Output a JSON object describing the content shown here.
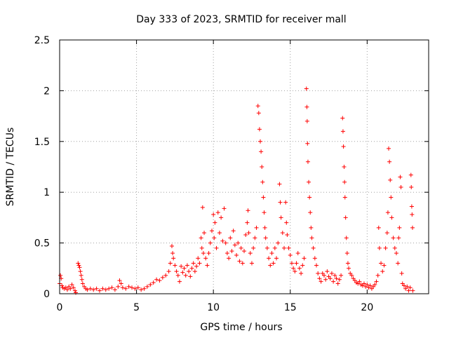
{
  "chart_data": {
    "type": "scatter",
    "title": "Day 333 of 2023, SRMTID for receiver mall",
    "xlabel": "GPS time / hours",
    "ylabel": "SRMTID / TECUs",
    "xlim": [
      0,
      24.0
    ],
    "ylim": [
      0,
      2.5
    ],
    "xticks": [
      0,
      5,
      10,
      15,
      20
    ],
    "xtick_labels": [
      "0",
      "5",
      "10",
      "15",
      "20"
    ],
    "yticks": [
      0,
      0.5,
      1,
      1.5,
      2,
      2.5
    ],
    "ytick_labels": [
      "0",
      "0.5",
      "1",
      "1.5",
      "2",
      "2.5"
    ],
    "grid": true,
    "marker": "+",
    "color": "#ff0000",
    "series": [
      {
        "name": "SRMTID",
        "points": [
          [
            0.0,
            0.1
          ],
          [
            0.05,
            0.18
          ],
          [
            0.1,
            0.15
          ],
          [
            0.15,
            0.08
          ],
          [
            0.2,
            0.06
          ],
          [
            0.3,
            0.05
          ],
          [
            0.4,
            0.06
          ],
          [
            0.5,
            0.04
          ],
          [
            0.6,
            0.07
          ],
          [
            0.7,
            0.05
          ],
          [
            0.8,
            0.09
          ],
          [
            0.9,
            0.06
          ],
          [
            1.0,
            0.03
          ],
          [
            1.05,
            0.01
          ],
          [
            1.2,
            0.3
          ],
          [
            1.25,
            0.28
          ],
          [
            1.3,
            0.26
          ],
          [
            1.35,
            0.22
          ],
          [
            1.4,
            0.18
          ],
          [
            1.45,
            0.14
          ],
          [
            1.5,
            0.1
          ],
          [
            1.6,
            0.07
          ],
          [
            1.7,
            0.05
          ],
          [
            1.8,
            0.04
          ],
          [
            2.0,
            0.05
          ],
          [
            2.2,
            0.04
          ],
          [
            2.4,
            0.05
          ],
          [
            2.6,
            0.03
          ],
          [
            2.8,
            0.05
          ],
          [
            3.0,
            0.04
          ],
          [
            3.2,
            0.05
          ],
          [
            3.4,
            0.06
          ],
          [
            3.6,
            0.04
          ],
          [
            3.8,
            0.07
          ],
          [
            3.9,
            0.13
          ],
          [
            4.0,
            0.1
          ],
          [
            4.1,
            0.06
          ],
          [
            4.3,
            0.05
          ],
          [
            4.5,
            0.07
          ],
          [
            4.7,
            0.06
          ],
          [
            4.9,
            0.05
          ],
          [
            5.1,
            0.06
          ],
          [
            5.3,
            0.04
          ],
          [
            5.5,
            0.05
          ],
          [
            5.7,
            0.07
          ],
          [
            5.9,
            0.09
          ],
          [
            6.1,
            0.11
          ],
          [
            6.3,
            0.14
          ],
          [
            6.5,
            0.13
          ],
          [
            6.7,
            0.16
          ],
          [
            6.9,
            0.18
          ],
          [
            7.1,
            0.22
          ],
          [
            7.2,
            0.3
          ],
          [
            7.3,
            0.47
          ],
          [
            7.35,
            0.4
          ],
          [
            7.4,
            0.35
          ],
          [
            7.5,
            0.28
          ],
          [
            7.6,
            0.22
          ],
          [
            7.7,
            0.18
          ],
          [
            7.8,
            0.12
          ],
          [
            7.9,
            0.27
          ],
          [
            8.0,
            0.21
          ],
          [
            8.1,
            0.25
          ],
          [
            8.2,
            0.18
          ],
          [
            8.3,
            0.28
          ],
          [
            8.4,
            0.22
          ],
          [
            8.5,
            0.17
          ],
          [
            8.6,
            0.25
          ],
          [
            8.7,
            0.3
          ],
          [
            8.8,
            0.22
          ],
          [
            8.9,
            0.27
          ],
          [
            9.0,
            0.35
          ],
          [
            9.1,
            0.3
          ],
          [
            9.2,
            0.55
          ],
          [
            9.25,
            0.45
          ],
          [
            9.3,
            0.85
          ],
          [
            9.35,
            0.4
          ],
          [
            9.4,
            0.6
          ],
          [
            9.5,
            0.35
          ],
          [
            9.6,
            0.28
          ],
          [
            9.7,
            0.4
          ],
          [
            9.8,
            0.5
          ],
          [
            9.9,
            0.62
          ],
          [
            10.0,
            0.78
          ],
          [
            10.05,
            0.55
          ],
          [
            10.1,
            0.7
          ],
          [
            10.2,
            0.45
          ],
          [
            10.3,
            0.8
          ],
          [
            10.4,
            0.6
          ],
          [
            10.5,
            0.75
          ],
          [
            10.6,
            0.52
          ],
          [
            10.7,
            0.84
          ],
          [
            10.8,
            0.5
          ],
          [
            10.9,
            0.4
          ],
          [
            11.0,
            0.35
          ],
          [
            11.1,
            0.55
          ],
          [
            11.2,
            0.42
          ],
          [
            11.3,
            0.62
          ],
          [
            11.4,
            0.48
          ],
          [
            11.5,
            0.38
          ],
          [
            11.6,
            0.5
          ],
          [
            11.7,
            0.32
          ],
          [
            11.8,
            0.45
          ],
          [
            11.9,
            0.3
          ],
          [
            12.0,
            0.42
          ],
          [
            12.1,
            0.58
          ],
          [
            12.2,
            0.7
          ],
          [
            12.25,
            0.82
          ],
          [
            12.3,
            0.6
          ],
          [
            12.4,
            0.4
          ],
          [
            12.5,
            0.3
          ],
          [
            12.6,
            0.45
          ],
          [
            12.7,
            0.55
          ],
          [
            12.8,
            0.65
          ],
          [
            12.9,
            1.85
          ],
          [
            12.95,
            1.78
          ],
          [
            13.0,
            1.62
          ],
          [
            13.05,
            1.5
          ],
          [
            13.1,
            1.4
          ],
          [
            13.15,
            1.25
          ],
          [
            13.2,
            1.1
          ],
          [
            13.25,
            0.95
          ],
          [
            13.3,
            0.8
          ],
          [
            13.35,
            0.65
          ],
          [
            13.4,
            0.55
          ],
          [
            13.5,
            0.45
          ],
          [
            13.6,
            0.35
          ],
          [
            13.7,
            0.28
          ],
          [
            13.8,
            0.4
          ],
          [
            13.9,
            0.3
          ],
          [
            14.0,
            0.45
          ],
          [
            14.1,
            0.35
          ],
          [
            14.2,
            0.5
          ],
          [
            14.3,
            1.08
          ],
          [
            14.35,
            0.9
          ],
          [
            14.4,
            0.75
          ],
          [
            14.5,
            0.6
          ],
          [
            14.6,
            0.45
          ],
          [
            14.7,
            0.9
          ],
          [
            14.75,
            0.7
          ],
          [
            14.8,
            0.58
          ],
          [
            14.9,
            0.45
          ],
          [
            15.0,
            0.38
          ],
          [
            15.1,
            0.3
          ],
          [
            15.2,
            0.25
          ],
          [
            15.3,
            0.22
          ],
          [
            15.4,
            0.3
          ],
          [
            15.5,
            0.4
          ],
          [
            15.6,
            0.25
          ],
          [
            15.7,
            0.2
          ],
          [
            15.8,
            0.28
          ],
          [
            15.9,
            0.35
          ],
          [
            16.05,
            2.02
          ],
          [
            16.08,
            1.84
          ],
          [
            16.1,
            1.7
          ],
          [
            16.12,
            1.48
          ],
          [
            16.15,
            1.3
          ],
          [
            16.2,
            1.1
          ],
          [
            16.25,
            0.95
          ],
          [
            16.3,
            0.8
          ],
          [
            16.35,
            0.65
          ],
          [
            16.4,
            0.55
          ],
          [
            16.5,
            0.45
          ],
          [
            16.6,
            0.35
          ],
          [
            16.7,
            0.28
          ],
          [
            16.8,
            0.2
          ],
          [
            16.9,
            0.15
          ],
          [
            17.0,
            0.12
          ],
          [
            17.1,
            0.2
          ],
          [
            17.2,
            0.18
          ],
          [
            17.3,
            0.14
          ],
          [
            17.4,
            0.22
          ],
          [
            17.5,
            0.17
          ],
          [
            17.6,
            0.15
          ],
          [
            17.7,
            0.2
          ],
          [
            17.8,
            0.12
          ],
          [
            17.9,
            0.18
          ],
          [
            18.0,
            0.15
          ],
          [
            18.1,
            0.1
          ],
          [
            18.2,
            0.14
          ],
          [
            18.3,
            0.18
          ],
          [
            18.4,
            1.73
          ],
          [
            18.43,
            1.6
          ],
          [
            18.46,
            1.45
          ],
          [
            18.5,
            1.25
          ],
          [
            18.53,
            1.1
          ],
          [
            18.56,
            0.95
          ],
          [
            18.6,
            0.75
          ],
          [
            18.65,
            0.55
          ],
          [
            18.7,
            0.4
          ],
          [
            18.75,
            0.3
          ],
          [
            18.8,
            0.25
          ],
          [
            18.9,
            0.2
          ],
          [
            19.0,
            0.18
          ],
          [
            19.1,
            0.15
          ],
          [
            19.2,
            0.13
          ],
          [
            19.3,
            0.11
          ],
          [
            19.4,
            0.1
          ],
          [
            19.5,
            0.12
          ],
          [
            19.6,
            0.09
          ],
          [
            19.7,
            0.08
          ],
          [
            19.8,
            0.1
          ],
          [
            19.9,
            0.07
          ],
          [
            20.0,
            0.09
          ],
          [
            20.1,
            0.06
          ],
          [
            20.2,
            0.08
          ],
          [
            20.3,
            0.05
          ],
          [
            20.4,
            0.07
          ],
          [
            20.5,
            0.09
          ],
          [
            20.6,
            0.12
          ],
          [
            20.7,
            0.18
          ],
          [
            20.75,
            0.65
          ],
          [
            20.8,
            0.45
          ],
          [
            20.9,
            0.3
          ],
          [
            21.0,
            0.22
          ],
          [
            21.1,
            0.28
          ],
          [
            21.2,
            0.45
          ],
          [
            21.3,
            0.6
          ],
          [
            21.35,
            0.8
          ],
          [
            21.4,
            1.43
          ],
          [
            21.45,
            1.3
          ],
          [
            21.5,
            1.12
          ],
          [
            21.55,
            0.95
          ],
          [
            21.6,
            0.75
          ],
          [
            21.7,
            0.55
          ],
          [
            21.8,
            0.45
          ],
          [
            21.9,
            0.4
          ],
          [
            22.0,
            0.3
          ],
          [
            22.05,
            0.55
          ],
          [
            22.1,
            0.65
          ],
          [
            22.15,
            1.15
          ],
          [
            22.2,
            1.05
          ],
          [
            22.25,
            0.2
          ],
          [
            22.3,
            0.1
          ],
          [
            22.4,
            0.08
          ],
          [
            22.5,
            0.05
          ],
          [
            22.6,
            0.07
          ],
          [
            22.7,
            0.03
          ],
          [
            22.8,
            0.06
          ],
          [
            22.85,
            1.17
          ],
          [
            22.87,
            1.05
          ],
          [
            22.9,
            0.86
          ],
          [
            22.92,
            0.78
          ],
          [
            22.95,
            0.65
          ],
          [
            22.97,
            0.03
          ]
        ]
      }
    ]
  }
}
